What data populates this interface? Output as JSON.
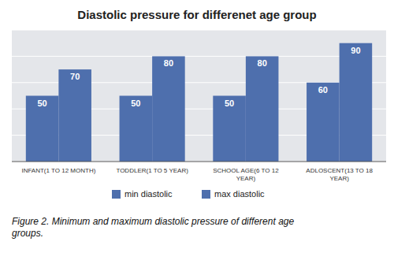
{
  "chart_data": {
    "type": "bar",
    "title": "Diastolic pressure for differenet age group",
    "categories": [
      "INFANT(1 TO 12 MONTH)",
      "TODDLER(1 TO 5 YEAR)",
      "SCHOOL AGE(6 TO 12\nYEAR)",
      "ADLOSCENT(13 TO 18\nYEAR)"
    ],
    "series": [
      {
        "name": "min diastolic",
        "color": "#4e6fad",
        "values": [
          50,
          50,
          50,
          60
        ]
      },
      {
        "name": "max diastolic",
        "color": "#4e6fad",
        "values": [
          70,
          80,
          80,
          90
        ]
      }
    ],
    "ylim": [
      0,
      100
    ],
    "yticks": [
      0,
      20,
      40,
      60,
      80,
      100
    ],
    "grid": true,
    "tick_labels": "x",
    "data_labels": true,
    "legend": "bottom",
    "caption": "Figure 2. Minimum and maximum diastolic pressure of different age\ngroups."
  }
}
